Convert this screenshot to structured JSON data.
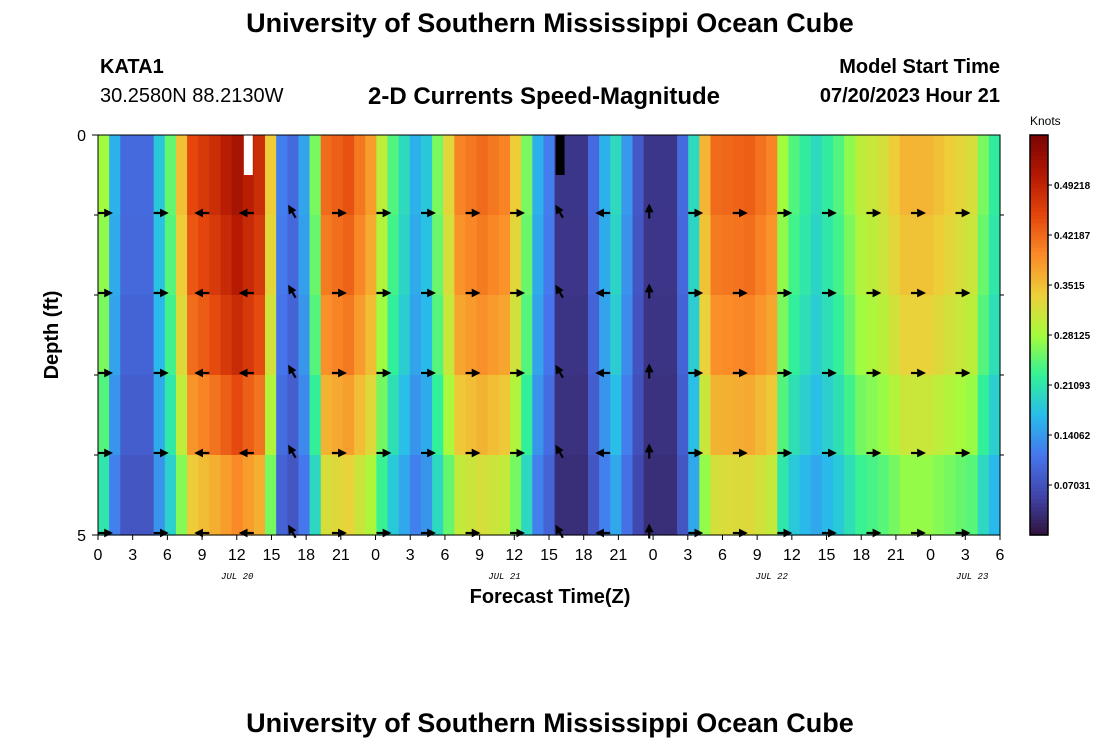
{
  "header": {
    "title": "University of Southern Mississippi Ocean Cube",
    "station": "KATA1",
    "coordinates": "30.2580N  88.2130W",
    "subtitle": "2-D Currents Speed-Magnitude",
    "model_start_label": "Model Start Time",
    "model_start_value": "07/20/2023 Hour 21",
    "repeated_title": "University of Southern Mississippi Ocean Cube"
  },
  "chart_data": {
    "type": "heatmap",
    "title": "2-D Currents Speed-Magnitude",
    "xlabel": "Forecast Time(Z)",
    "ylabel": "Depth (ft)",
    "y_ticks": [
      "0",
      "5"
    ],
    "ylim": [
      0,
      5
    ],
    "x_tick_labels": [
      "0",
      "3",
      "6",
      "9",
      "12",
      "15",
      "18",
      "21",
      "0",
      "3",
      "6",
      "9",
      "12",
      "15",
      "18",
      "21",
      "0",
      "3",
      "6",
      "9",
      "12",
      "15",
      "18",
      "21",
      "0",
      "3",
      "6"
    ],
    "date_labels": [
      {
        "label": "JUL 20",
        "hour_index": 12
      },
      {
        "label": "JUL 21",
        "hour_index": 36
      },
      {
        "label": "JUL 22",
        "hour_index": 60
      },
      {
        "label": "JUL 23",
        "hour_index": 78
      }
    ],
    "colorbar": {
      "unit": "Knots",
      "range": [
        0,
        0.5625
      ],
      "tick_values": [
        0.07031,
        0.14062,
        0.21093,
        0.28125,
        0.3515,
        0.42187,
        0.49218
      ],
      "tick_labels": [
        "0.07031",
        "0.14062",
        "0.21093",
        "0.28125",
        "0.3515",
        "0.42187",
        "0.49218"
      ]
    },
    "hours": 81,
    "depth_rows": 5,
    "speed_profile": [
      [
        0,
        0.28
      ],
      [
        1,
        0.16
      ],
      [
        2,
        0.1
      ],
      [
        4,
        0.1
      ],
      [
        5,
        0.18
      ],
      [
        6,
        0.25
      ],
      [
        7,
        0.35
      ],
      [
        8,
        0.45
      ],
      [
        10,
        0.48
      ],
      [
        12,
        0.52
      ],
      [
        14,
        0.48
      ],
      [
        15,
        0.34
      ],
      [
        16,
        0.12
      ],
      [
        17,
        0.1
      ],
      [
        18,
        0.15
      ],
      [
        19,
        0.26
      ],
      [
        20,
        0.42
      ],
      [
        22,
        0.44
      ],
      [
        24,
        0.38
      ],
      [
        25,
        0.3
      ],
      [
        26,
        0.24
      ],
      [
        27,
        0.2
      ],
      [
        28,
        0.16
      ],
      [
        29,
        0.18
      ],
      [
        30,
        0.26
      ],
      [
        31,
        0.33
      ],
      [
        32,
        0.4
      ],
      [
        34,
        0.42
      ],
      [
        36,
        0.4
      ],
      [
        37,
        0.34
      ],
      [
        38,
        0.26
      ],
      [
        39,
        0.16
      ],
      [
        40,
        0.12
      ],
      [
        41,
        0.04
      ],
      [
        43,
        0.04
      ],
      [
        44,
        0.1
      ],
      [
        45,
        0.16
      ],
      [
        46,
        0.2
      ],
      [
        47,
        0.14
      ],
      [
        48,
        0.08
      ],
      [
        49,
        0.04
      ],
      [
        51,
        0.04
      ],
      [
        52,
        0.1
      ],
      [
        53,
        0.2
      ],
      [
        54,
        0.36
      ],
      [
        55,
        0.42
      ],
      [
        58,
        0.43
      ],
      [
        60,
        0.4
      ],
      [
        61,
        0.28
      ],
      [
        62,
        0.24
      ],
      [
        64,
        0.2
      ],
      [
        66,
        0.24
      ],
      [
        68,
        0.3
      ],
      [
        70,
        0.32
      ],
      [
        72,
        0.36
      ],
      [
        74,
        0.36
      ],
      [
        76,
        0.34
      ],
      [
        78,
        0.32
      ],
      [
        79,
        0.26
      ],
      [
        80,
        0.22
      ]
    ],
    "depth_factor": [
      1.0,
      0.97,
      0.93,
      0.86,
      0.76
    ],
    "surface_markers": [
      {
        "hour": 13,
        "color": "#ffffff"
      },
      {
        "hour": 41,
        "color": "#000000"
      }
    ],
    "vector_hours": [
      0,
      5,
      9,
      13,
      17,
      21,
      25,
      29,
      33,
      37,
      41,
      45,
      49,
      53,
      57,
      61,
      65,
      69,
      73,
      77
    ],
    "vector_depths": [
      1,
      2,
      3,
      4,
      5
    ],
    "vector_directions_deg": [
      0,
      0,
      180,
      180,
      120,
      0,
      0,
      0,
      0,
      0,
      120,
      180,
      90,
      0,
      0,
      0,
      0,
      0,
      0,
      0
    ]
  }
}
